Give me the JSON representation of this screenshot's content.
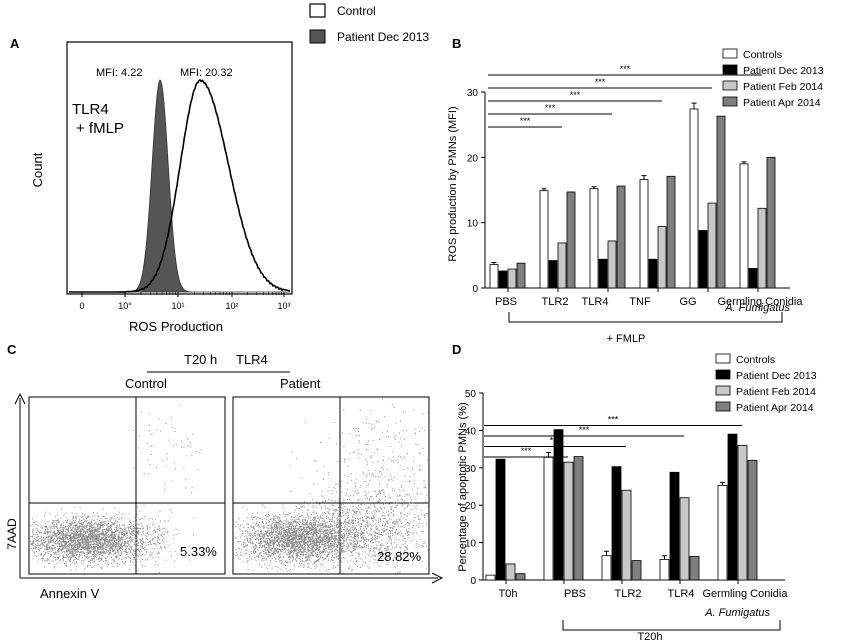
{
  "colors": {
    "controls": "#ffffff",
    "patient_dec_2013": "#000000",
    "patient_feb_2014": "#c8c8c8",
    "patient_apr_2014": "#7f7f7f",
    "patient_histogram": "#555555",
    "dots": "#8a8a8a"
  },
  "panel_labels": [
    "A",
    "B",
    "C",
    "D"
  ],
  "top_legend": {
    "control": "Control",
    "patient": "Patient Dec 2013"
  },
  "chart_data": [
    {
      "id": "A",
      "type": "histogram",
      "condition": "TLR4\n+ fMLP",
      "condition_line1": "TLR4",
      "condition_line2": "+ fMLP",
      "xlabel": "ROS Production",
      "ylabel": "Count",
      "x_scale": "log",
      "x_ticks": [
        "0",
        "10°",
        "10¹",
        "10²",
        "10³"
      ],
      "annotations": [
        "MFI: 4.22",
        "MFI: 20.32"
      ],
      "series": [
        {
          "name": "Patient Dec 2013",
          "fill": "filled",
          "mfi": 4.22
        },
        {
          "name": "Control",
          "fill": "open",
          "mfi": 20.32
        }
      ]
    },
    {
      "id": "B",
      "type": "bar",
      "ylabel": "ROS production by PMNs (MFI)",
      "ylim": [
        0,
        30
      ],
      "yticks": [
        "0",
        "10",
        "20",
        "30"
      ],
      "categories": [
        "PBS",
        "TLR2",
        "TLR4",
        "TNF",
        "GG",
        "Germling Conidia"
      ],
      "category_sublabel": "A.  Fumigatus",
      "group_label": "+ FMLP",
      "series": [
        {
          "name": "Controls",
          "values": [
            3.6,
            14.9,
            15.2,
            16.6,
            27.4,
            19.0
          ],
          "errors": [
            0.3,
            0.3,
            0.3,
            0.6,
            0.9,
            0.3
          ]
        },
        {
          "name": "Patient Dec 2013",
          "values": [
            2.6,
            4.2,
            4.4,
            4.4,
            8.8,
            3.0
          ]
        },
        {
          "name": "Patient Feb 2014",
          "values": [
            2.9,
            6.9,
            7.2,
            9.4,
            13.0,
            12.2
          ]
        },
        {
          "name": "Patient Apr 2014",
          "values": [
            3.8,
            14.7,
            15.6,
            17.1,
            26.3,
            20.0
          ]
        }
      ],
      "significance": [
        {
          "from": "PBS",
          "to": "TLR2",
          "label": "***"
        },
        {
          "from": "PBS",
          "to": "TLR4",
          "label": "***"
        },
        {
          "from": "PBS",
          "to": "TNF",
          "label": "***"
        },
        {
          "from": "PBS",
          "to": "GG",
          "label": "***"
        },
        {
          "from": "PBS",
          "to": "Germling Conidia",
          "label": "***"
        }
      ]
    },
    {
      "id": "C",
      "type": "scatter",
      "title_line": "T20 h",
      "title_stimulus": "TLR4",
      "subplots": [
        {
          "name": "Control",
          "quadrant_percent": "5.33%"
        },
        {
          "name": "Patient",
          "quadrant_percent": "28.82%"
        }
      ],
      "xlabel": "Annexin V",
      "ylabel": "7AAD"
    },
    {
      "id": "D",
      "type": "bar",
      "ylabel": "Percentage of apoptotic PMNs (%)",
      "ylim": [
        0,
        50
      ],
      "yticks": [
        "0",
        "10",
        "20",
        "30",
        "40",
        "50"
      ],
      "categories": [
        "T0h",
        "PBS",
        "TLR2",
        "TLR4",
        "Germling Conidia"
      ],
      "category_sublabel": "A.  Fumigatus",
      "group_label": "T20h",
      "series": [
        {
          "name": "Controls",
          "values": [
            1.3,
            32.8,
            6.5,
            5.5,
            25.3
          ],
          "errors": [
            0.0,
            1.3,
            1.2,
            1.0,
            0.8
          ]
        },
        {
          "name": "Patient Dec 2013",
          "values": [
            32.3,
            40.2,
            30.3,
            28.8,
            39.0
          ]
        },
        {
          "name": "Patient Feb 2014",
          "values": [
            4.3,
            31.5,
            24.0,
            22.0,
            36.0
          ]
        },
        {
          "name": "Patient Apr 2014",
          "values": [
            1.7,
            33.0,
            5.2,
            6.3,
            32.0
          ]
        }
      ],
      "significance": [
        {
          "from": "T0h",
          "to": "PBS",
          "label": "***"
        },
        {
          "from": "T0h",
          "to": "TLR2",
          "label": "***"
        },
        {
          "from": "T0h",
          "to": "TLR4",
          "label": "***"
        },
        {
          "from": "T0h",
          "to": "Germling Conidia",
          "label": "***"
        }
      ]
    }
  ]
}
